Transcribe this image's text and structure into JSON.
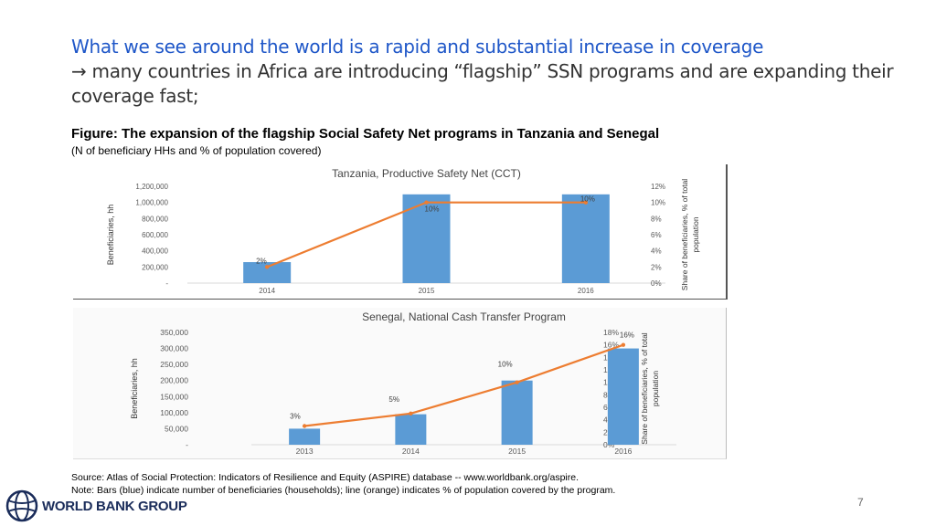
{
  "heading": {
    "line1": "What we see around the world is a rapid and substantial increase in coverage",
    "arrow": "→",
    "line2": " many countries in Africa are introducing “flagship” SSN programs and are expanding their coverage fast;"
  },
  "figure": {
    "title": "Figure: The expansion of the flagship Social Safety Net programs in Tanzania and Senegal",
    "subtitle": "(N of beneficiary HHs and % of population covered)"
  },
  "source": "Source: Atlas of Social Protection: Indicators of Resilience and Equity (ASPIRE) database -- www.worldbank.org/aspire.",
  "note": "Note: Bars (blue) indicate number of beneficiaries (households); line (orange) indicates % of population covered by the program.",
  "logo": {
    "text": "WORLD BANK GROUP",
    "icon": "globe-icon"
  },
  "page_number": "7",
  "colors": {
    "bar": "#5b9bd5",
    "line": "#ed7d31",
    "heading_blue": "#1f57c8"
  },
  "chart_data": [
    {
      "type": "bar",
      "title": "Tanzania, Productive Safety Net (CCT)",
      "categories": [
        "2014",
        "2015",
        "2016"
      ],
      "series": [
        {
          "values": [
            260000,
            1100000,
            1100000
          ]
        },
        {
          "values": [
            2,
            10,
            10
          ]
        }
      ],
      "data_labels": [
        "2%",
        "10%",
        "10%"
      ],
      "ylabel": "Beneficiaries, hh",
      "y2label": "Share of beneficiaries, % of total population",
      "ylim": [
        0,
        1200000
      ],
      "y_ticks": [
        "-",
        "200,000",
        "400,000",
        "600,000",
        "800,000",
        "1,000,000",
        "1,200,000"
      ],
      "y2lim": [
        0,
        12
      ],
      "y2_ticks": [
        "0%",
        "2%",
        "4%",
        "6%",
        "8%",
        "10%",
        "12%"
      ],
      "grid": false
    },
    {
      "type": "bar",
      "title": "Senegal, National Cash Transfer Program",
      "categories": [
        "2013",
        "2014",
        "2015",
        "2016"
      ],
      "series": [
        {
          "values": [
            50000,
            95000,
            200000,
            300000
          ]
        },
        {
          "values": [
            3,
            5,
            10,
            16
          ]
        }
      ],
      "data_labels": [
        "3%",
        "5%",
        "10%",
        "16%"
      ],
      "ylabel": "Beneficiaries, hh",
      "y2label": "Share of beneficiaries, % of total population",
      "ylim": [
        0,
        350000
      ],
      "y_ticks": [
        "-",
        "50,000",
        "100,000",
        "150,000",
        "200,000",
        "250,000",
        "300,000",
        "350,000"
      ],
      "y2lim": [
        0,
        18
      ],
      "y2_ticks": [
        "0%",
        "2%",
        "4%",
        "6%",
        "8%",
        "10%",
        "12%",
        "14%",
        "16%",
        "18%"
      ],
      "grid": false
    }
  ]
}
